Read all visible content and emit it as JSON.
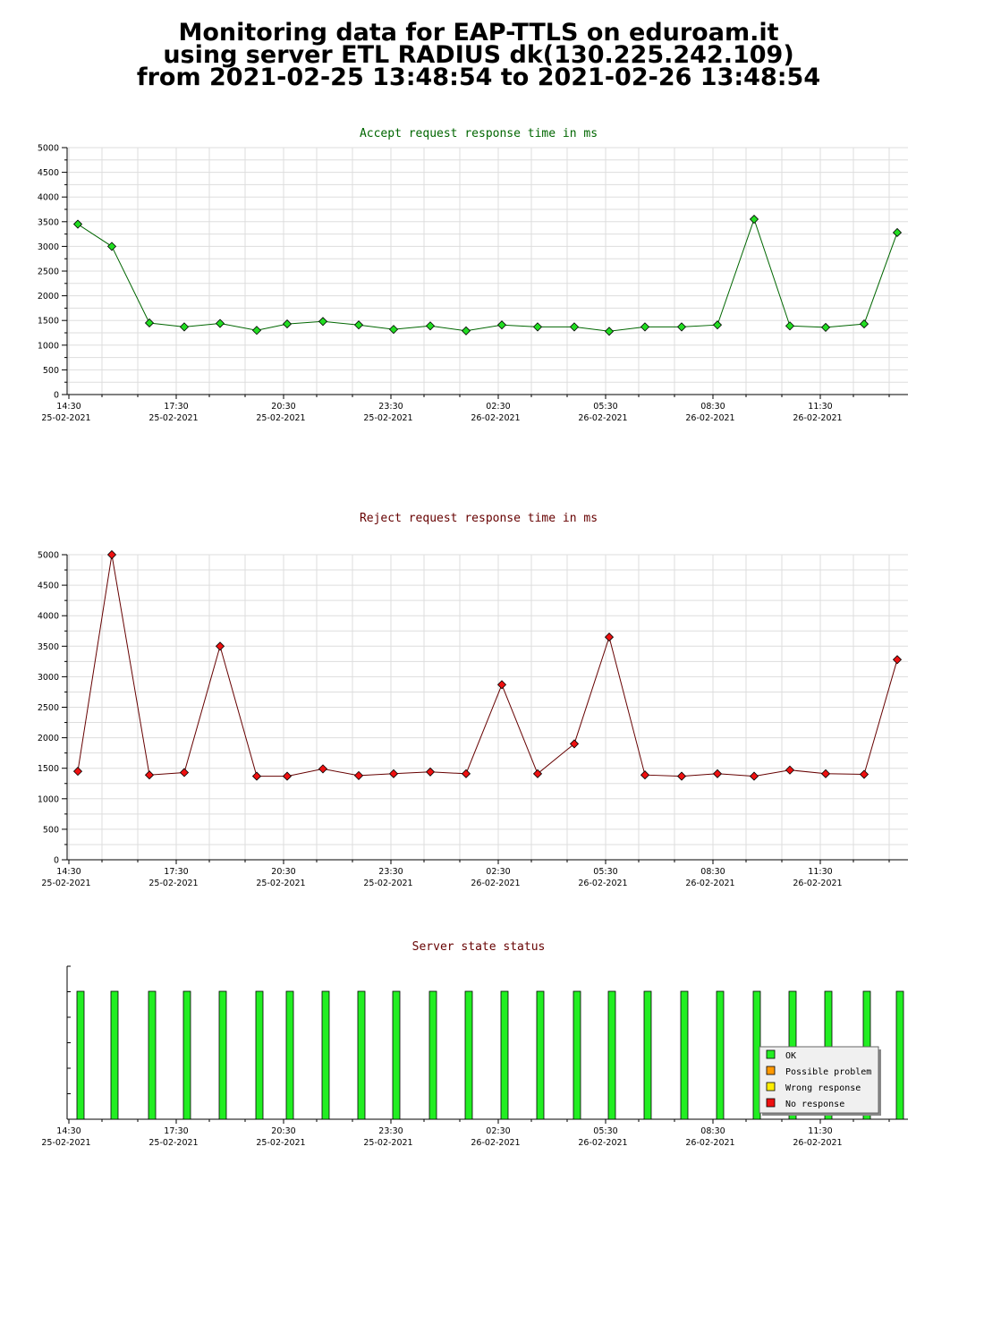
{
  "header": {
    "line1": "Monitoring data for EAP-TTLS on eduroam.it",
    "line2": "using server ETL RADIUS dk(130.225.242.109)",
    "line3": "from 2021-02-25 13:48:54 to 2021-02-26 13:48:54"
  },
  "chart_data": [
    {
      "type": "line",
      "title": "Accept request response time in ms",
      "title_color": "#006600",
      "marker_color": "#22dd22",
      "line_color": "#006600",
      "ylim": [
        0,
        5000
      ],
      "yticks": [
        "0",
        "500",
        "1000",
        "1500",
        "2000",
        "2500",
        "3000",
        "3500",
        "4000",
        "4500",
        "5000"
      ],
      "xticks": [
        {
          "time": "14:30",
          "date": "25-02-2021"
        },
        {
          "time": "17:30",
          "date": "25-02-2021"
        },
        {
          "time": "20:30",
          "date": "25-02-2021"
        },
        {
          "time": "23:30",
          "date": "25-02-2021"
        },
        {
          "time": "02:30",
          "date": "26-02-2021"
        },
        {
          "time": "05:30",
          "date": "26-02-2021"
        },
        {
          "time": "08:30",
          "date": "26-02-2021"
        },
        {
          "time": "11:30",
          "date": "26-02-2021"
        }
      ],
      "grid": true,
      "series": [
        {
          "values": [
            3450,
            3000,
            1450,
            1370,
            1440,
            1300,
            1430,
            1480,
            1410,
            1320,
            1390,
            1290,
            1410,
            1370,
            1370,
            1280,
            1370,
            1370,
            1410,
            3550,
            1390,
            1360,
            1430,
            3280
          ]
        }
      ]
    },
    {
      "type": "line",
      "title": "Reject request response time in ms",
      "title_color": "#660000",
      "marker_color": "#ee1111",
      "line_color": "#660000",
      "ylim": [
        0,
        5000
      ],
      "yticks": [
        "0",
        "500",
        "1000",
        "1500",
        "2000",
        "2500",
        "3000",
        "3500",
        "4000",
        "4500",
        "5000"
      ],
      "xticks": [
        {
          "time": "14:30",
          "date": "25-02-2021"
        },
        {
          "time": "17:30",
          "date": "25-02-2021"
        },
        {
          "time": "20:30",
          "date": "25-02-2021"
        },
        {
          "time": "23:30",
          "date": "25-02-2021"
        },
        {
          "time": "02:30",
          "date": "26-02-2021"
        },
        {
          "time": "05:30",
          "date": "26-02-2021"
        },
        {
          "time": "08:30",
          "date": "26-02-2021"
        },
        {
          "time": "11:30",
          "date": "26-02-2021"
        }
      ],
      "grid": true,
      "series": [
        {
          "values": [
            1450,
            5000,
            1390,
            1430,
            3500,
            1370,
            1370,
            1490,
            1380,
            1410,
            1440,
            1410,
            2870,
            1410,
            1900,
            3650,
            1390,
            1370,
            1410,
            1370,
            1470,
            1410,
            1400,
            3280
          ]
        }
      ]
    },
    {
      "type": "bar",
      "title": "Server state status",
      "title_color": "#660000",
      "bar_color": "#22ee22",
      "xticks": [
        {
          "time": "14:30",
          "date": "25-02-2021"
        },
        {
          "time": "17:30",
          "date": "25-02-2021"
        },
        {
          "time": "20:30",
          "date": "25-02-2021"
        },
        {
          "time": "23:30",
          "date": "25-02-2021"
        },
        {
          "time": "02:30",
          "date": "26-02-2021"
        },
        {
          "time": "05:30",
          "date": "26-02-2021"
        },
        {
          "time": "08:30",
          "date": "26-02-2021"
        },
        {
          "time": "11:30",
          "date": "26-02-2021"
        }
      ],
      "states": [
        "OK",
        "OK",
        "OK",
        "OK",
        "OK",
        "OK",
        "OK",
        "OK",
        "OK",
        "OK",
        "OK",
        "OK",
        "OK",
        "OK",
        "OK",
        "OK",
        "OK",
        "OK",
        "OK",
        "OK",
        "OK",
        "OK",
        "OK",
        "OK"
      ],
      "legend_position": "bottom-right",
      "legend": [
        {
          "label": "OK",
          "color": "#22ee22"
        },
        {
          "label": "Possible problem",
          "color": "#ff9900"
        },
        {
          "label": "Wrong response",
          "color": "#ffee00"
        },
        {
          "label": "No response",
          "color": "#ee1111"
        }
      ]
    }
  ]
}
